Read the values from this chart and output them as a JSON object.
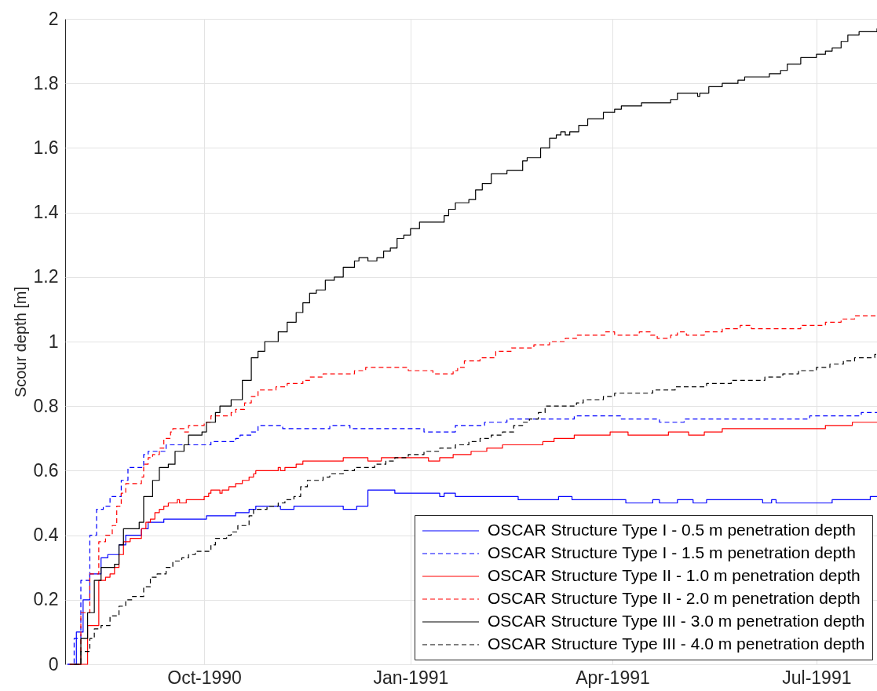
{
  "chart_data": {
    "type": "step",
    "ylabel": "Scour depth [m]",
    "xlim": [
      "1990-07-31",
      "1991-07-28"
    ],
    "xticks": [
      {
        "value": "1990-10-01",
        "label": "Oct-1990"
      },
      {
        "value": "1991-01-01",
        "label": "Jan-1991"
      },
      {
        "value": "1991-04-01",
        "label": "Apr-1991"
      },
      {
        "value": "1991-07-01",
        "label": "Jul-1991"
      }
    ],
    "ylim": [
      0,
      2
    ],
    "yticks": [
      0,
      0.2,
      0.4,
      0.6,
      0.8,
      1,
      1.2,
      1.4,
      1.6,
      1.8,
      2
    ],
    "grid": true,
    "legend": "bottom right",
    "series": [
      {
        "name": "OSCAR Structure Type I - 0.5 m penetration depth",
        "color": "#0000ff",
        "line_style": "solid",
        "x": [
          "1990-08-01",
          "1990-08-05",
          "1990-08-08",
          "1990-08-11",
          "1990-08-16",
          "1990-08-19",
          "1990-08-24",
          "1990-08-27",
          "1990-09-03",
          "1990-09-06",
          "1990-09-13",
          "1990-10-02",
          "1990-10-15",
          "1990-10-21",
          "1990-10-24",
          "1990-11-04",
          "1990-11-10",
          "1990-12-02",
          "1990-12-08",
          "1990-12-13",
          "1990-12-25",
          "1991-01-14",
          "1991-01-16",
          "1991-01-21",
          "1991-02-18",
          "1991-03-08",
          "1991-03-14",
          "1991-04-07",
          "1991-04-19",
          "1991-04-22",
          "1991-04-30",
          "1991-05-07",
          "1991-05-13",
          "1991-06-07",
          "1991-06-11",
          "1991-06-13",
          "1991-07-08",
          "1991-07-25",
          "1991-07-28"
        ],
        "values": [
          0,
          0.1,
          0.2,
          0.28,
          0.33,
          0.34,
          0.37,
          0.4,
          0.42,
          0.44,
          0.45,
          0.46,
          0.47,
          0.48,
          0.49,
          0.48,
          0.49,
          0.48,
          0.49,
          0.54,
          0.53,
          0.52,
          0.53,
          0.52,
          0.51,
          0.52,
          0.51,
          0.5,
          0.51,
          0.5,
          0.51,
          0.5,
          0.51,
          0.5,
          0.51,
          0.5,
          0.51,
          0.52,
          0.52
        ]
      },
      {
        "name": "OSCAR Structure Type I - 1.5 m penetration depth",
        "color": "#0000ff",
        "line_style": "dashed",
        "x": [
          "1990-08-01",
          "1990-08-04",
          "1990-08-07",
          "1990-08-11",
          "1990-08-14",
          "1990-08-17",
          "1990-08-20",
          "1990-08-25",
          "1990-08-28",
          "1990-09-04",
          "1990-09-06",
          "1990-09-14",
          "1990-10-04",
          "1990-10-15",
          "1990-10-17",
          "1990-10-22",
          "1990-10-25",
          "1990-11-05",
          "1990-11-26",
          "1990-12-05",
          "1991-01-07",
          "1991-01-21",
          "1991-02-03",
          "1991-02-13",
          "1991-03-15",
          "1991-04-05",
          "1991-04-22",
          "1991-05-03",
          "1991-06-28",
          "1991-07-21",
          "1991-07-28"
        ],
        "values": [
          0,
          0.08,
          0.26,
          0.4,
          0.48,
          0.49,
          0.52,
          0.57,
          0.61,
          0.65,
          0.66,
          0.68,
          0.69,
          0.7,
          0.71,
          0.72,
          0.74,
          0.73,
          0.74,
          0.73,
          0.72,
          0.74,
          0.75,
          0.76,
          0.77,
          0.76,
          0.75,
          0.76,
          0.77,
          0.78,
          0.78
        ]
      },
      {
        "name": "OSCAR Structure Type II - 1.0 m penetration depth",
        "color": "#ff0000",
        "line_style": "solid",
        "x": [
          "1990-08-02",
          "1990-08-10",
          "1990-08-15",
          "1990-08-18",
          "1990-08-20",
          "1990-08-22",
          "1990-08-24",
          "1990-08-26",
          "1990-08-29",
          "1990-09-03",
          "1990-09-05",
          "1990-09-07",
          "1990-09-09",
          "1990-09-11",
          "1990-09-13",
          "1990-09-15",
          "1990-09-19",
          "1990-09-20",
          "1990-09-23",
          "1990-10-01",
          "1990-10-03",
          "1990-10-04",
          "1990-10-08",
          "1990-10-09",
          "1990-10-12",
          "1990-10-15",
          "1990-10-18",
          "1990-10-21",
          "1990-10-23",
          "1990-10-24",
          "1990-11-03",
          "1990-11-04",
          "1990-11-06",
          "1990-11-11",
          "1990-11-14",
          "1990-12-02",
          "1990-12-13",
          "1990-12-19",
          "1991-01-09",
          "1991-01-14",
          "1991-01-20",
          "1991-01-28",
          "1991-02-04",
          "1991-02-11",
          "1991-03-01",
          "1991-03-06",
          "1991-03-15",
          "1991-03-31",
          "1991-04-08",
          "1991-04-26",
          "1991-05-05",
          "1991-05-12",
          "1991-05-20",
          "1991-07-05",
          "1991-07-17",
          "1991-07-28"
        ],
        "values": [
          0,
          0.12,
          0.26,
          0.27,
          0.28,
          0.3,
          0.34,
          0.38,
          0.39,
          0.42,
          0.44,
          0.45,
          0.47,
          0.48,
          0.49,
          0.5,
          0.51,
          0.5,
          0.51,
          0.52,
          0.53,
          0.54,
          0.53,
          0.54,
          0.55,
          0.56,
          0.57,
          0.58,
          0.59,
          0.6,
          0.61,
          0.6,
          0.61,
          0.62,
          0.63,
          0.64,
          0.63,
          0.64,
          0.63,
          0.64,
          0.65,
          0.66,
          0.67,
          0.68,
          0.69,
          0.7,
          0.71,
          0.72,
          0.71,
          0.72,
          0.71,
          0.72,
          0.73,
          0.74,
          0.75,
          0.75
        ]
      },
      {
        "name": "OSCAR Structure Type II - 2.0 m penetration depth",
        "color": "#ff0000",
        "line_style": "dashed",
        "x": [
          "1990-08-02",
          "1990-08-07",
          "1990-08-11",
          "1990-08-15",
          "1990-08-18",
          "1990-08-21",
          "1990-08-23",
          "1990-08-25",
          "1990-08-27",
          "1990-09-03",
          "1990-09-04",
          "1990-09-06",
          "1990-09-08",
          "1990-09-11",
          "1990-09-13",
          "1990-09-16",
          "1990-09-17",
          "1990-09-22",
          "1990-09-24",
          "1990-10-01",
          "1990-10-04",
          "1990-10-13",
          "1990-10-15",
          "1990-10-19",
          "1990-10-22",
          "1990-10-25",
          "1990-11-02",
          "1990-11-07",
          "1990-11-14",
          "1990-11-17",
          "1990-11-23",
          "1990-12-07",
          "1990-12-12",
          "1990-12-31",
          "1991-01-11",
          "1991-01-20",
          "1991-01-22",
          "1991-01-25",
          "1991-02-01",
          "1991-02-08",
          "1991-02-15",
          "1991-02-25",
          "1991-03-04",
          "1991-03-11",
          "1991-03-16",
          "1991-03-29",
          "1991-04-02",
          "1991-04-13",
          "1991-04-18",
          "1991-04-21",
          "1991-04-27",
          "1991-04-30",
          "1991-05-04",
          "1991-05-12",
          "1991-05-20",
          "1991-05-28",
          "1991-06-02",
          "1991-06-24",
          "1991-07-05",
          "1991-07-12",
          "1991-07-18",
          "1991-07-28"
        ],
        "values": [
          0,
          0.16,
          0.28,
          0.38,
          0.4,
          0.43,
          0.49,
          0.53,
          0.56,
          0.58,
          0.62,
          0.64,
          0.65,
          0.67,
          0.7,
          0.72,
          0.73,
          0.72,
          0.74,
          0.75,
          0.77,
          0.78,
          0.79,
          0.81,
          0.83,
          0.85,
          0.86,
          0.87,
          0.88,
          0.89,
          0.9,
          0.91,
          0.92,
          0.91,
          0.9,
          0.91,
          0.92,
          0.94,
          0.95,
          0.97,
          0.98,
          0.99,
          1.0,
          1.01,
          1.02,
          1.03,
          1.02,
          1.03,
          1.02,
          1.01,
          1.02,
          1.03,
          1.02,
          1.03,
          1.04,
          1.05,
          1.04,
          1.05,
          1.06,
          1.07,
          1.08,
          1.08
        ]
      },
      {
        "name": "OSCAR Structure Type III - 3.0 m penetration depth",
        "color": "#000000",
        "line_style": "solid",
        "x": [
          "1990-08-02",
          "1990-08-07",
          "1990-08-10",
          "1990-08-13",
          "1990-08-16",
          "1990-08-22",
          "1990-08-24",
          "1990-08-26",
          "1990-09-02",
          "1990-09-04",
          "1990-09-08",
          "1990-09-11",
          "1990-09-15",
          "1990-09-18",
          "1990-09-22",
          "1990-09-24",
          "1990-09-30",
          "1990-10-02",
          "1990-10-06",
          "1990-10-08",
          "1990-10-13",
          "1990-10-18",
          "1990-10-22",
          "1990-10-25",
          "1990-10-28",
          "1990-11-03",
          "1990-11-07",
          "1990-11-11",
          "1990-11-14",
          "1990-11-17",
          "1990-11-20",
          "1990-11-24",
          "1990-11-28",
          "1990-12-02",
          "1990-12-07",
          "1990-12-09",
          "1990-12-13",
          "1990-12-17",
          "1990-12-20",
          "1990-12-23",
          "1990-12-26",
          "1990-12-29",
          "1991-01-01",
          "1991-01-05",
          "1991-01-16",
          "1991-01-18",
          "1991-01-21",
          "1991-01-27",
          "1991-01-30",
          "1991-02-02",
          "1991-02-06",
          "1991-02-13",
          "1991-02-20",
          "1991-02-22",
          "1991-02-28",
          "1991-03-04",
          "1991-03-07",
          "1991-03-09",
          "1991-03-11",
          "1991-03-13",
          "1991-03-17",
          "1991-03-21",
          "1991-03-28",
          "1991-04-02",
          "1991-04-05",
          "1991-04-14",
          "1991-04-27",
          "1991-04-30",
          "1991-05-09",
          "1991-05-10",
          "1991-05-14",
          "1991-05-20",
          "1991-05-27",
          "1991-05-30",
          "1991-06-10",
          "1991-06-15",
          "1991-06-18",
          "1991-06-24",
          "1991-07-01",
          "1991-07-05",
          "1991-07-08",
          "1991-07-12",
          "1991-07-15",
          "1991-07-20",
          "1991-07-28"
        ],
        "values": [
          0,
          0.08,
          0.16,
          0.26,
          0.3,
          0.31,
          0.37,
          0.42,
          0.44,
          0.52,
          0.57,
          0.61,
          0.62,
          0.66,
          0.68,
          0.71,
          0.72,
          0.75,
          0.78,
          0.8,
          0.82,
          0.88,
          0.95,
          0.97,
          1.0,
          1.03,
          1.06,
          1.09,
          1.12,
          1.15,
          1.16,
          1.19,
          1.2,
          1.23,
          1.25,
          1.26,
          1.25,
          1.26,
          1.28,
          1.29,
          1.32,
          1.33,
          1.35,
          1.37,
          1.39,
          1.41,
          1.43,
          1.44,
          1.47,
          1.49,
          1.52,
          1.53,
          1.56,
          1.57,
          1.6,
          1.63,
          1.64,
          1.65,
          1.64,
          1.65,
          1.67,
          1.69,
          1.71,
          1.72,
          1.73,
          1.74,
          1.75,
          1.77,
          1.76,
          1.77,
          1.79,
          1.8,
          1.81,
          1.82,
          1.83,
          1.84,
          1.86,
          1.88,
          1.89,
          1.9,
          1.91,
          1.93,
          1.95,
          1.96,
          1.97
        ]
      },
      {
        "name": "OSCAR Structure Type III - 4.0 m penetration depth",
        "color": "#000000",
        "line_style": "dashed",
        "x": [
          "1990-08-04",
          "1990-08-07",
          "1990-08-11",
          "1990-08-13",
          "1990-08-16",
          "1990-08-20",
          "1990-08-24",
          "1990-08-27",
          "1990-08-30",
          "1990-09-04",
          "1990-09-07",
          "1990-09-10",
          "1990-09-14",
          "1990-09-17",
          "1990-09-21",
          "1990-09-24",
          "1990-09-27",
          "1990-10-04",
          "1990-10-06",
          "1990-10-11",
          "1990-10-13",
          "1990-10-16",
          "1990-10-21",
          "1990-10-23",
          "1990-10-29",
          "1990-11-03",
          "1990-11-06",
          "1990-11-10",
          "1990-11-13",
          "1990-11-16",
          "1990-11-23",
          "1990-11-26",
          "1990-12-02",
          "1990-12-07",
          "1990-12-16",
          "1990-12-21",
          "1990-12-25",
          "1990-12-31",
          "1991-01-07",
          "1991-01-14",
          "1991-01-21",
          "1991-01-27",
          "1991-02-01",
          "1991-02-06",
          "1991-02-11",
          "1991-02-16",
          "1991-02-20",
          "1991-02-23",
          "1991-02-27",
          "1991-03-02",
          "1991-03-16",
          "1991-03-19",
          "1991-03-28",
          "1991-04-02",
          "1991-04-19",
          "1991-04-29",
          "1991-05-13",
          "1991-05-24",
          "1991-06-08",
          "1991-06-16",
          "1991-06-23",
          "1991-07-01",
          "1991-07-07",
          "1991-07-13",
          "1991-07-18",
          "1991-07-27",
          "1991-07-28"
        ],
        "values": [
          0,
          0.04,
          0.08,
          0.11,
          0.12,
          0.15,
          0.18,
          0.2,
          0.21,
          0.24,
          0.27,
          0.28,
          0.3,
          0.32,
          0.33,
          0.34,
          0.35,
          0.37,
          0.39,
          0.4,
          0.41,
          0.43,
          0.46,
          0.48,
          0.49,
          0.5,
          0.51,
          0.52,
          0.55,
          0.57,
          0.58,
          0.59,
          0.6,
          0.61,
          0.62,
          0.63,
          0.64,
          0.65,
          0.66,
          0.67,
          0.68,
          0.69,
          0.7,
          0.71,
          0.72,
          0.74,
          0.75,
          0.76,
          0.78,
          0.8,
          0.81,
          0.82,
          0.83,
          0.84,
          0.85,
          0.86,
          0.87,
          0.88,
          0.89,
          0.9,
          0.91,
          0.92,
          0.93,
          0.94,
          0.95,
          0.96,
          0.96
        ]
      }
    ]
  }
}
